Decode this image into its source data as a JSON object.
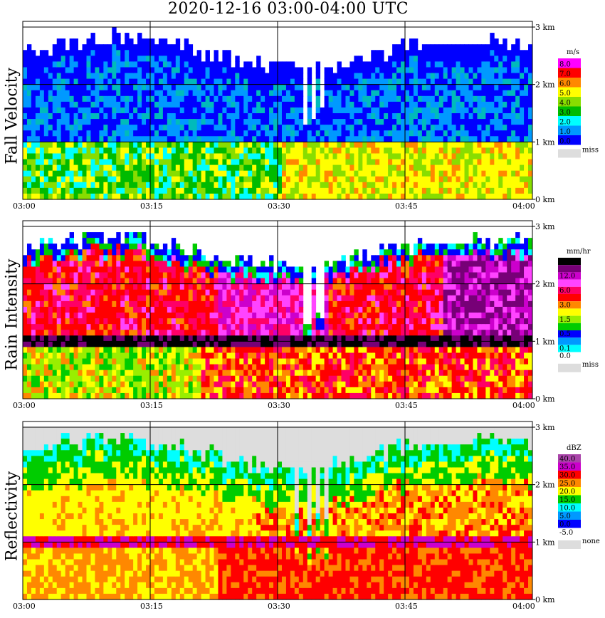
{
  "title": "2020-12-16  03:00-04:00 UTC",
  "chart_data": [
    {
      "type": "heatmap",
      "title": "Fall Velocity",
      "unit": "m/s",
      "x_ticks": [
        "03:00",
        "03:15",
        "03:30",
        "03:45",
        "04:00"
      ],
      "y_ticks": [
        "0 km",
        "1 km",
        "2 km",
        "3 km"
      ],
      "ylim": [
        0,
        3
      ],
      "colorbar": [
        {
          "label": "8.0",
          "color": "#ff00ff"
        },
        {
          "label": "7.0",
          "color": "#ff0000"
        },
        {
          "label": "6.0",
          "color": "#ff8800"
        },
        {
          "label": "5.0",
          "color": "#ffff00"
        },
        {
          "label": "4.0",
          "color": "#88dd00"
        },
        {
          "label": "3.0",
          "color": "#00bb00"
        },
        {
          "label": "2.0",
          "color": "#00ffff"
        },
        {
          "label": "1.0",
          "color": "#0099ff"
        },
        {
          "label": "0.0",
          "color": "#0000ff"
        }
      ],
      "missing_label": "miss",
      "missing_color": "#dddddd"
    },
    {
      "type": "heatmap",
      "title": "Rain Intensity",
      "unit": "mm/hr",
      "x_ticks": [
        "03:00",
        "03:15",
        "03:30",
        "03:45",
        "04:00"
      ],
      "y_ticks": [
        "0 km",
        "1 km",
        "2 km",
        "3 km"
      ],
      "ylim": [
        0,
        3
      ],
      "colorbar": [
        {
          "label": "48.0",
          "color": "#000000"
        },
        {
          "label": "",
          "color": "#770077"
        },
        {
          "label": "12.0",
          "color": "#cc00cc"
        },
        {
          "label": "",
          "color": "#ff44ff"
        },
        {
          "label": "6.0",
          "color": "#ff0066"
        },
        {
          "label": "",
          "color": "#ff0000"
        },
        {
          "label": "3.0",
          "color": "#ff8800"
        },
        {
          "label": "",
          "color": "#ffff00"
        },
        {
          "label": "1.5",
          "color": "#99ee00"
        },
        {
          "label": "",
          "color": "#00cc00"
        },
        {
          "label": "0.5",
          "color": "#0000ff"
        },
        {
          "label": "",
          "color": "#0099ff"
        },
        {
          "label": "0.1",
          "color": "#00ffff"
        },
        {
          "label": "0.0",
          "color": "#ffffff"
        }
      ],
      "missing_label": "miss",
      "missing_color": "#dddddd"
    },
    {
      "type": "heatmap",
      "title": "Reflectivity",
      "unit": "dBZ",
      "x_ticks": [
        "03:00",
        "03:15",
        "03:30",
        "03:45",
        "04:00"
      ],
      "y_ticks": [
        "0 km",
        "1 km",
        "2 km",
        "3 km"
      ],
      "ylim": [
        0,
        3
      ],
      "colorbar": [
        {
          "label": "40.0",
          "color": "#aa44aa"
        },
        {
          "label": "35.0",
          "color": "#cc00cc"
        },
        {
          "label": "30.0",
          "color": "#ff0000"
        },
        {
          "label": "25.0",
          "color": "#ff8800"
        },
        {
          "label": "20.0",
          "color": "#ffff00"
        },
        {
          "label": "15.0",
          "color": "#00cc00"
        },
        {
          "label": "10.0",
          "color": "#00ffff"
        },
        {
          "label": "5.0",
          "color": "#0099ff"
        },
        {
          "label": "0.0",
          "color": "#0000ff"
        },
        {
          "label": "-5.0",
          "color": "#ffffff"
        }
      ],
      "missing_label": "none",
      "missing_color": "#dddddd"
    }
  ]
}
